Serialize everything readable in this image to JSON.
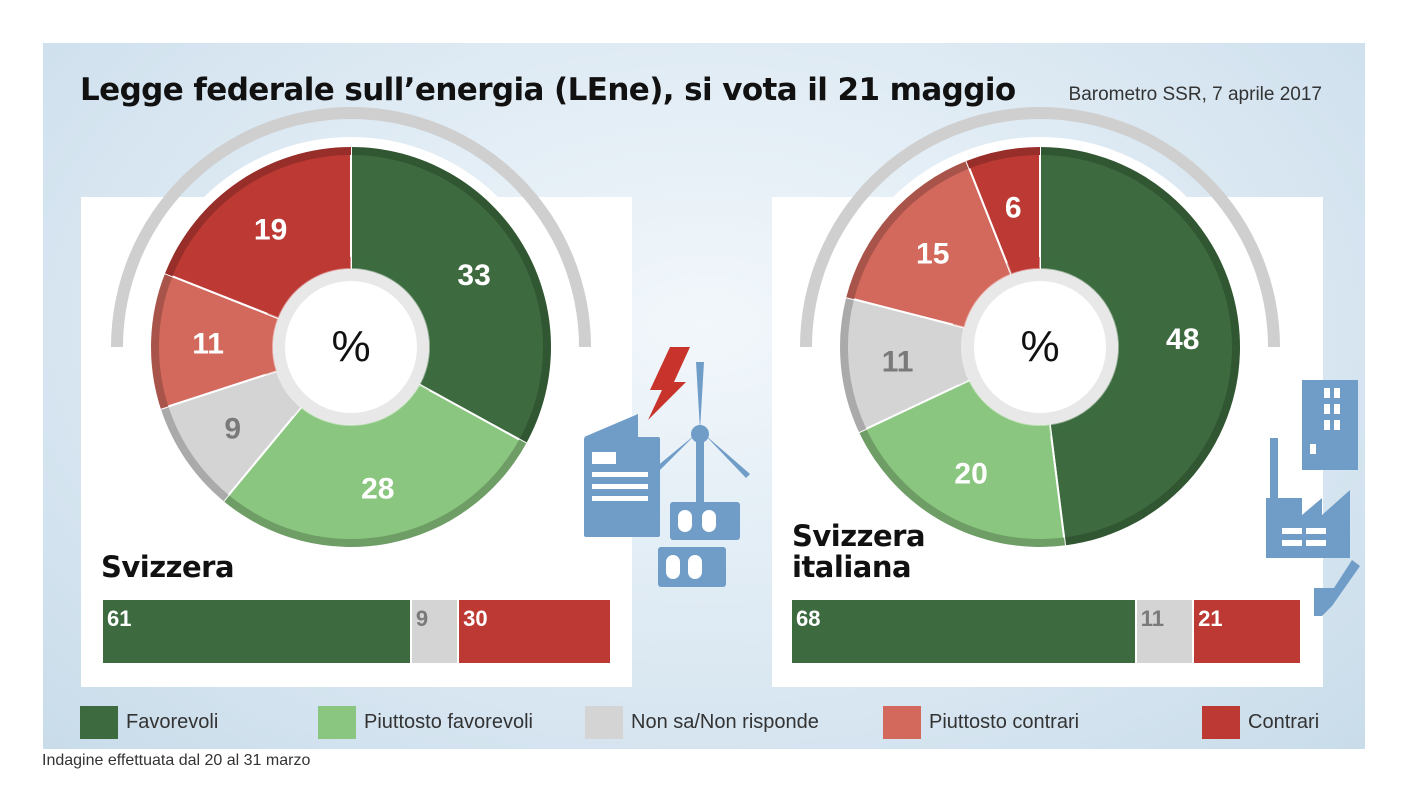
{
  "title": "Legge federale sull’energia (LEne), si vota il 21 maggio",
  "source": "Barometro SSR, 7 aprile 2017",
  "footnote": "Indagine effettuata dal 20 al 31 marzo",
  "colors": {
    "favorevoli": "#3d6b3f",
    "piuttosto_favorevoli": "#8ac67f",
    "non_sa": "#d4d4d4",
    "piuttosto_contrari": "#d3695d",
    "contrari": "#bd3a34",
    "icon_blue": "#6f9dc8"
  },
  "legend": [
    {
      "key": "favorevoli",
      "label": "Favorevoli"
    },
    {
      "key": "piuttosto_favorevoli",
      "label": "Piuttosto favorevoli"
    },
    {
      "key": "non_sa",
      "label": "Non sa/Non risponde"
    },
    {
      "key": "piuttosto_contrari",
      "label": "Piuttosto contrari"
    },
    {
      "key": "contrari",
      "label": "Contrari"
    }
  ],
  "chart_data": [
    {
      "type": "pie",
      "region": "Svizzera",
      "center_label": "%",
      "categories": [
        "Favorevoli",
        "Piuttosto favorevoli",
        "Non sa/Non risponde",
        "Piuttosto contrari",
        "Contrari"
      ],
      "values": [
        33,
        28,
        9,
        11,
        19
      ],
      "value_labels": [
        "33",
        "28",
        "9",
        "11",
        "19"
      ]
    },
    {
      "type": "bar",
      "region": "Svizzera",
      "categories": [
        "Favorevoli",
        "Non sa/Non risponde",
        "Contrari"
      ],
      "values": [
        61,
        9,
        30
      ],
      "value_labels": [
        "61",
        "9",
        "30"
      ]
    },
    {
      "type": "pie",
      "region": "Svizzera italiana",
      "center_label": "%",
      "categories": [
        "Favorevoli",
        "Piuttosto favorevoli",
        "Non sa/Non risponde",
        "Piuttosto contrari",
        "Contrari"
      ],
      "values": [
        48,
        20,
        11,
        15,
        6
      ],
      "value_labels": [
        "48",
        "20",
        "11",
        "15",
        "6"
      ]
    },
    {
      "type": "bar",
      "region": "Svizzera italiana",
      "categories": [
        "Favorevoli",
        "Non sa/Non risponde",
        "Contrari"
      ],
      "values": [
        68,
        11,
        21
      ],
      "value_labels": [
        "68",
        "11",
        "21"
      ]
    }
  ],
  "regions": {
    "left": {
      "name_line1": "Svizzera",
      "name_line2": ""
    },
    "right": {
      "name_line1": "Svizzera",
      "name_line2": "italiana"
    }
  },
  "icons": {
    "left": "energy-icon",
    "right": "buildings-icon"
  }
}
